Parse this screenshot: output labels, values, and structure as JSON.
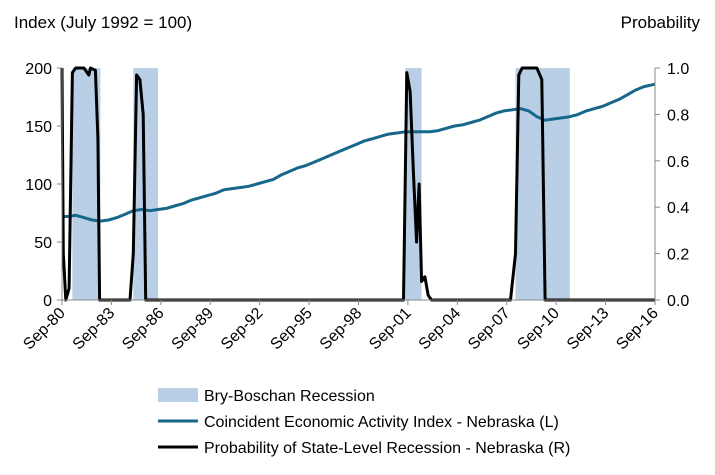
{
  "chart_data": {
    "type": "line",
    "title": "",
    "left_axis": {
      "title": "Index (July 1992 = 100)",
      "min": 0,
      "max": 200,
      "ticks": [
        0,
        50,
        100,
        150,
        200
      ]
    },
    "right_axis": {
      "title": "Probability",
      "min": 0,
      "max": 1,
      "ticks": [
        "0.0",
        "0.2",
        "0.4",
        "0.6",
        "0.8",
        "1.0"
      ]
    },
    "x_axis": {
      "min": 1980.67,
      "max": 2016.67,
      "ticks": [
        {
          "label": "Sep-80",
          "x": 1980.67
        },
        {
          "label": "Sep-83",
          "x": 1983.67
        },
        {
          "label": "Sep-86",
          "x": 1986.67
        },
        {
          "label": "Sep-89",
          "x": 1989.67
        },
        {
          "label": "Sep-92",
          "x": 1992.67
        },
        {
          "label": "Sep-95",
          "x": 1995.67
        },
        {
          "label": "Sep-98",
          "x": 1998.67
        },
        {
          "label": "Sep-01",
          "x": 2001.67
        },
        {
          "label": "Sep-04",
          "x": 2004.67
        },
        {
          "label": "Sep-07",
          "x": 2007.67
        },
        {
          "label": "Sep-10",
          "x": 2010.67
        },
        {
          "label": "Sep-13",
          "x": 2013.67
        },
        {
          "label": "Sep-16",
          "x": 2016.67
        }
      ]
    },
    "recessions": [
      [
        1981.3,
        1983.0
      ],
      [
        1985.0,
        1986.5
      ],
      [
        2001.5,
        2002.5
      ],
      [
        2008.2,
        2011.5
      ]
    ],
    "series": [
      {
        "name": "Coincident Economic Activity Index  - Nebraska (L)",
        "axis": "left",
        "color": "#16678a",
        "points": [
          [
            1980.67,
            72
          ],
          [
            1981.0,
            72
          ],
          [
            1981.5,
            73
          ],
          [
            1982.0,
            71
          ],
          [
            1982.5,
            69
          ],
          [
            1983.0,
            68
          ],
          [
            1983.5,
            69
          ],
          [
            1984.0,
            71
          ],
          [
            1984.5,
            74
          ],
          [
            1985.0,
            77
          ],
          [
            1985.5,
            78
          ],
          [
            1986.0,
            77
          ],
          [
            1986.5,
            78
          ],
          [
            1987.0,
            79
          ],
          [
            1987.5,
            81
          ],
          [
            1988.0,
            83
          ],
          [
            1988.5,
            86
          ],
          [
            1989.0,
            88
          ],
          [
            1989.5,
            90
          ],
          [
            1990.0,
            92
          ],
          [
            1990.5,
            95
          ],
          [
            1991.0,
            96
          ],
          [
            1991.5,
            97
          ],
          [
            1992.0,
            98
          ],
          [
            1992.5,
            100
          ],
          [
            1993.0,
            102
          ],
          [
            1993.5,
            104
          ],
          [
            1994.0,
            108
          ],
          [
            1994.5,
            111
          ],
          [
            1995.0,
            114
          ],
          [
            1995.5,
            116
          ],
          [
            1996.0,
            119
          ],
          [
            1996.5,
            122
          ],
          [
            1997.0,
            125
          ],
          [
            1997.5,
            128
          ],
          [
            1998.0,
            131
          ],
          [
            1998.5,
            134
          ],
          [
            1999.0,
            137
          ],
          [
            1999.5,
            139
          ],
          [
            2000.0,
            141
          ],
          [
            2000.5,
            143
          ],
          [
            2001.0,
            144
          ],
          [
            2001.5,
            145
          ],
          [
            2002.0,
            145
          ],
          [
            2002.5,
            145
          ],
          [
            2003.0,
            145
          ],
          [
            2003.5,
            146
          ],
          [
            2004.0,
            148
          ],
          [
            2004.5,
            150
          ],
          [
            2005.0,
            151
          ],
          [
            2005.5,
            153
          ],
          [
            2006.0,
            155
          ],
          [
            2006.5,
            158
          ],
          [
            2007.0,
            161
          ],
          [
            2007.5,
            163
          ],
          [
            2008.0,
            164
          ],
          [
            2008.5,
            165
          ],
          [
            2009.0,
            163
          ],
          [
            2009.5,
            158
          ],
          [
            2010.0,
            155
          ],
          [
            2010.5,
            156
          ],
          [
            2011.0,
            157
          ],
          [
            2011.5,
            158
          ],
          [
            2012.0,
            160
          ],
          [
            2012.5,
            163
          ],
          [
            2013.0,
            165
          ],
          [
            2013.5,
            167
          ],
          [
            2014.0,
            170
          ],
          [
            2014.5,
            173
          ],
          [
            2015.0,
            177
          ],
          [
            2015.5,
            181
          ],
          [
            2016.0,
            184
          ],
          [
            2016.67,
            186
          ]
        ]
      },
      {
        "name": "Probability of State-Level Recession  - Nebraska (R)",
        "axis": "right",
        "color": "#000000",
        "points": [
          [
            1980.67,
            1.0
          ],
          [
            1980.75,
            0.2
          ],
          [
            1980.9,
            0.0
          ],
          [
            1981.1,
            0.05
          ],
          [
            1981.3,
            0.98
          ],
          [
            1981.5,
            1.0
          ],
          [
            1982.0,
            1.0
          ],
          [
            1982.3,
            0.97
          ],
          [
            1982.4,
            1.0
          ],
          [
            1982.7,
            0.99
          ],
          [
            1982.85,
            0.7
          ],
          [
            1982.95,
            0.0
          ],
          [
            1984.8,
            0.0
          ],
          [
            1985.0,
            0.2
          ],
          [
            1985.2,
            0.97
          ],
          [
            1985.4,
            0.95
          ],
          [
            1985.6,
            0.8
          ],
          [
            1985.75,
            0.0
          ],
          [
            2001.4,
            0.0
          ],
          [
            2001.6,
            0.98
          ],
          [
            2001.8,
            0.9
          ],
          [
            2002.0,
            0.55
          ],
          [
            2002.2,
            0.25
          ],
          [
            2002.35,
            0.5
          ],
          [
            2002.5,
            0.08
          ],
          [
            2002.7,
            0.1
          ],
          [
            2002.9,
            0.02
          ],
          [
            2003.1,
            0.0
          ],
          [
            2007.9,
            0.0
          ],
          [
            2008.2,
            0.2
          ],
          [
            2008.4,
            0.97
          ],
          [
            2008.6,
            1.0
          ],
          [
            2009.5,
            1.0
          ],
          [
            2009.8,
            0.95
          ],
          [
            2010.0,
            0.0
          ],
          [
            2016.67,
            0.0
          ]
        ]
      }
    ],
    "legend": [
      {
        "label": "Bry-Boschan Recession",
        "kind": "box",
        "color": "#b8cfe6"
      },
      {
        "label": "Coincident Economic Activity Index  - Nebraska (L)",
        "kind": "line",
        "color": "#16678a"
      },
      {
        "label": "Probability of State-Level Recession  - Nebraska (R)",
        "kind": "line",
        "color": "#000000"
      }
    ]
  }
}
